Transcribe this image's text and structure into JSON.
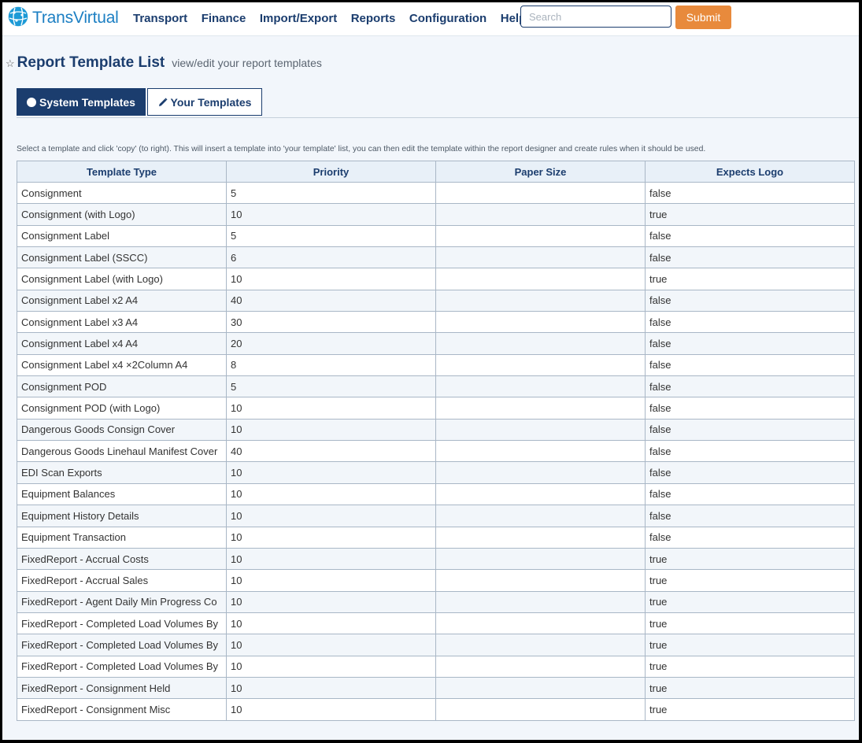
{
  "brand": {
    "name_a": "Trans",
    "name_b": "Virtual",
    "accent": "#1c7fc3",
    "logo_icon": "globe-icon"
  },
  "nav": {
    "items": [
      "Transport",
      "Finance",
      "Import/Export",
      "Reports",
      "Configuration",
      "Help"
    ]
  },
  "search": {
    "placeholder": "Search",
    "value": "",
    "submit_label": "Submit",
    "submit_color": "#e88a3c"
  },
  "page": {
    "title": "Report Template List",
    "subtitle": "view/edit your report templates",
    "star_icon": "star-outline-icon"
  },
  "tabs": [
    {
      "label": "System Templates",
      "icon": "circle-icon",
      "active": true
    },
    {
      "label": "Your Templates",
      "icon": "pencil-icon",
      "active": false
    }
  ],
  "hint": "Select a template and click 'copy' (to right). This will insert a template into 'your template' list, you can then edit the template within the report designer and create rules when it should be used.",
  "table": {
    "headers": [
      "Template Type",
      "Priority",
      "Paper Size",
      "Expects Logo"
    ],
    "rows": [
      [
        "Consignment",
        "5",
        "",
        "false"
      ],
      [
        "Consignment (with Logo)",
        "10",
        "",
        "true"
      ],
      [
        "Consignment Label",
        "5",
        "",
        "false"
      ],
      [
        "Consignment Label (SSCC)",
        "6",
        "",
        "false"
      ],
      [
        "Consignment Label (with Logo)",
        "10",
        "",
        "true"
      ],
      [
        "Consignment Label x2 A4",
        "40",
        "",
        "false"
      ],
      [
        "Consignment Label x3 A4",
        "30",
        "",
        "false"
      ],
      [
        "Consignment Label x4 A4",
        "20",
        "",
        "false"
      ],
      [
        "Consignment Label x4 ×2Column A4",
        "8",
        "",
        "false"
      ],
      [
        "Consignment POD",
        "5",
        "",
        "false"
      ],
      [
        "Consignment POD (with Logo)",
        "10",
        "",
        "false"
      ],
      [
        "Dangerous Goods Consign Cover",
        "10",
        "",
        "false"
      ],
      [
        "Dangerous Goods Linehaul Manifest Cover",
        "40",
        "",
        "false"
      ],
      [
        "EDI Scan Exports",
        "10",
        "",
        "false"
      ],
      [
        "Equipment Balances",
        "10",
        "",
        "false"
      ],
      [
        "Equipment History Details",
        "10",
        "",
        "false"
      ],
      [
        "Equipment Transaction",
        "10",
        "",
        "false"
      ],
      [
        "FixedReport - Accrual Costs",
        "10",
        "",
        "true"
      ],
      [
        "FixedReport - Accrual Sales",
        "10",
        "",
        "true"
      ],
      [
        "FixedReport - Agent Daily Min Progress Co",
        "10",
        "",
        "true"
      ],
      [
        "FixedReport - Completed Load Volumes By",
        "10",
        "",
        "true"
      ],
      [
        "FixedReport - Completed Load Volumes By",
        "10",
        "",
        "true"
      ],
      [
        "FixedReport - Completed Load Volumes By",
        "10",
        "",
        "true"
      ],
      [
        "FixedReport - Consignment Held",
        "10",
        "",
        "true"
      ],
      [
        "FixedReport - Consignment Misc",
        "10",
        "",
        "true"
      ]
    ]
  }
}
